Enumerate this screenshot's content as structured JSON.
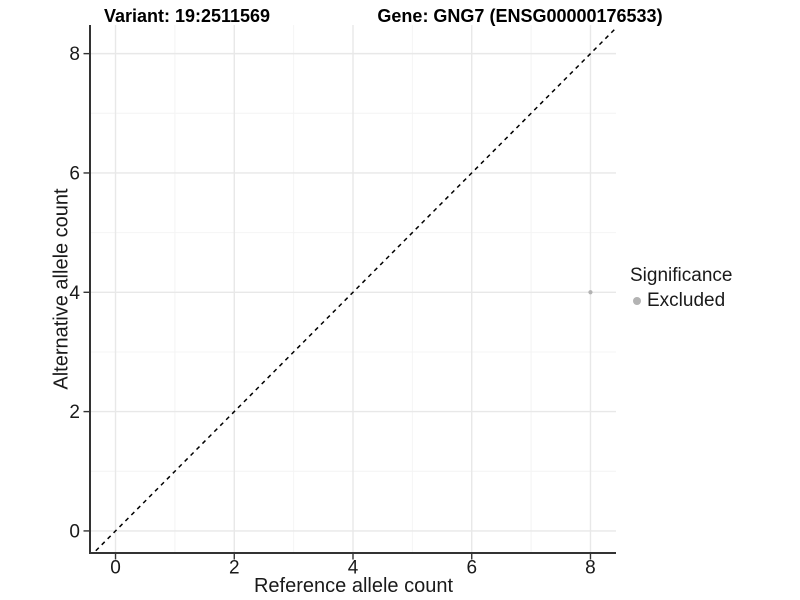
{
  "header": {
    "variant_title": "Variant: 19:2511569",
    "gene_title": "Gene: GNG7 (ENSG00000176533)"
  },
  "legend": {
    "title": "Significance",
    "items": [
      {
        "label": "Excluded",
        "color": "#b3b3b3"
      }
    ]
  },
  "chart_data": {
    "type": "scatter",
    "xlabel": "Reference allele count",
    "ylabel": "Alternative allele count",
    "xlim": [
      -0.43,
      8.43
    ],
    "ylim": [
      -0.37,
      8.48
    ],
    "x_ticks": [
      0,
      2,
      4,
      6,
      8
    ],
    "y_ticks": [
      0,
      2,
      4,
      6,
      8
    ],
    "x_minor": [
      1,
      3,
      5,
      7
    ],
    "y_minor": [
      1,
      3,
      5,
      7
    ],
    "grid": true,
    "legend_position": "right",
    "series": [
      {
        "name": "Excluded",
        "color": "#b3b3b3",
        "points": [
          {
            "x": 8,
            "y": 4
          }
        ]
      }
    ],
    "reference_line": {
      "style": "dashed",
      "slope": 1,
      "intercept": 0,
      "color": "#000000"
    },
    "colors": {
      "grid_major": "#e8e8e8",
      "grid_minor": "#f4f4f4",
      "axis_line": "#333333",
      "tick_label": "#1a1a1a"
    }
  }
}
